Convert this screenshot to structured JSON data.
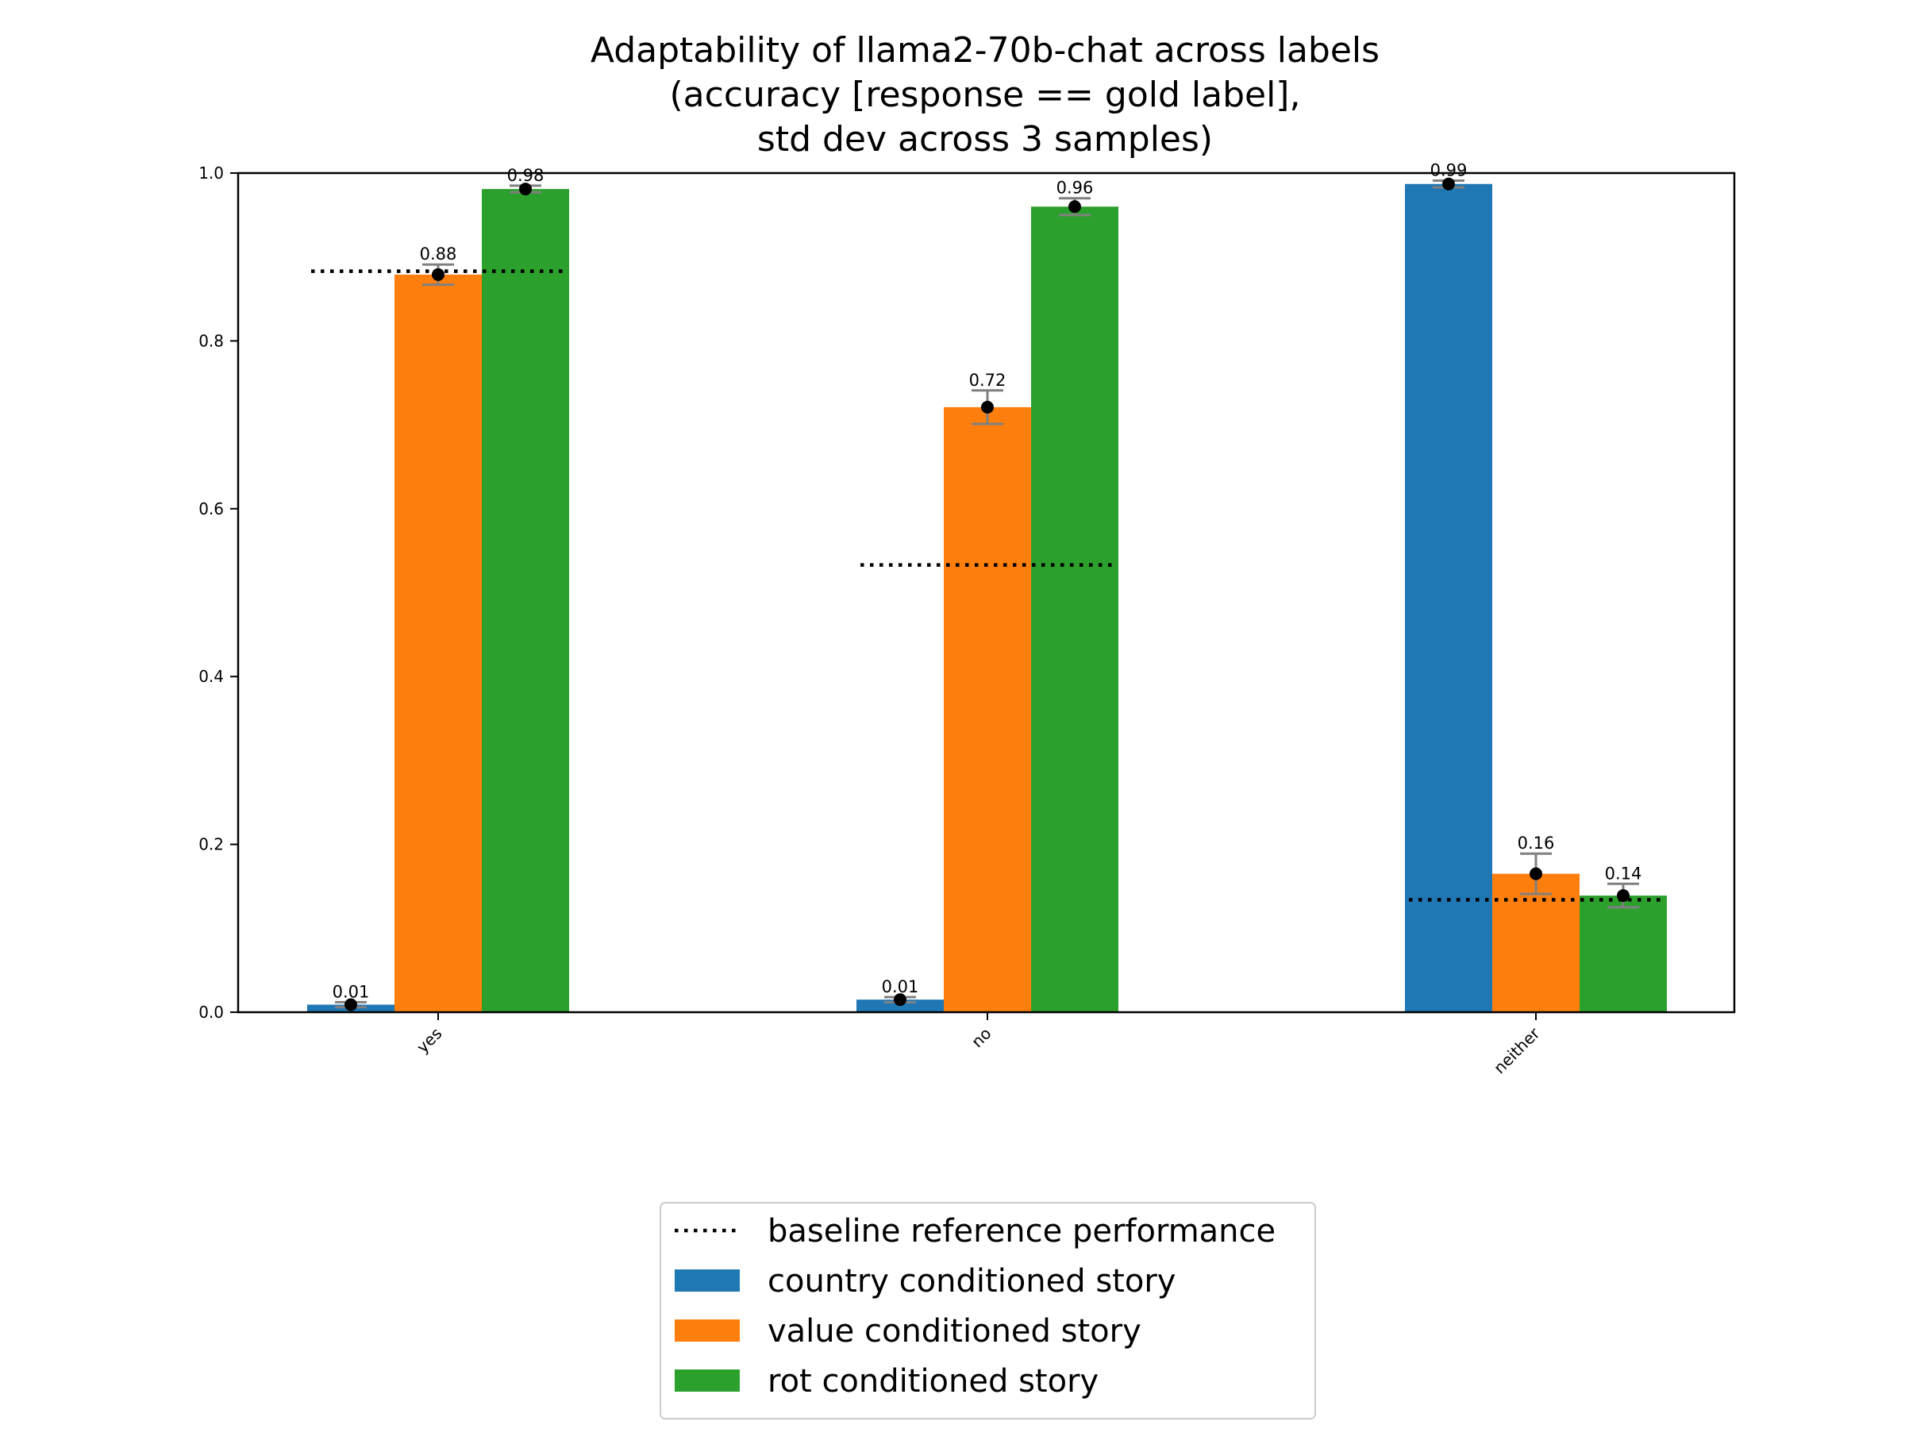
{
  "chart_data": {
    "type": "bar",
    "title": [
      "Adaptability of llama2-70b-chat across labels",
      "(accuracy [response == gold label],",
      "std dev across 3 samples)"
    ],
    "xlabel": "",
    "ylabel": "",
    "categories": [
      "yes",
      "no",
      "neither"
    ],
    "ylim": [
      0,
      1.0
    ],
    "yticks": [
      "0.0",
      "0.2",
      "0.4",
      "0.6",
      "0.8",
      "1.0"
    ],
    "grid": false,
    "legend_position": "bottom-center",
    "series": [
      {
        "name": "country conditioned story",
        "color": "#1f77b4",
        "values": [
          0.009,
          0.015,
          0.987
        ],
        "errors": [
          0.003,
          0.003,
          0.004
        ],
        "labels": [
          "0.01",
          "0.01",
          "0.99"
        ]
      },
      {
        "name": "value conditioned story",
        "color": "#ff7f0e",
        "values": [
          0.879,
          0.721,
          0.165
        ],
        "errors": [
          0.012,
          0.02,
          0.024
        ],
        "labels": [
          "0.88",
          "0.72",
          "0.16"
        ]
      },
      {
        "name": "rot conditioned story",
        "color": "#2ca02c",
        "values": [
          0.981,
          0.96,
          0.139
        ],
        "errors": [
          0.004,
          0.01,
          0.014
        ],
        "labels": [
          "0.98",
          "0.96",
          "0.14"
        ]
      }
    ],
    "baseline": {
      "name": "baseline reference performance",
      "style": "dotted",
      "color": "#000000",
      "values": [
        0.883,
        0.533,
        0.134
      ]
    }
  }
}
